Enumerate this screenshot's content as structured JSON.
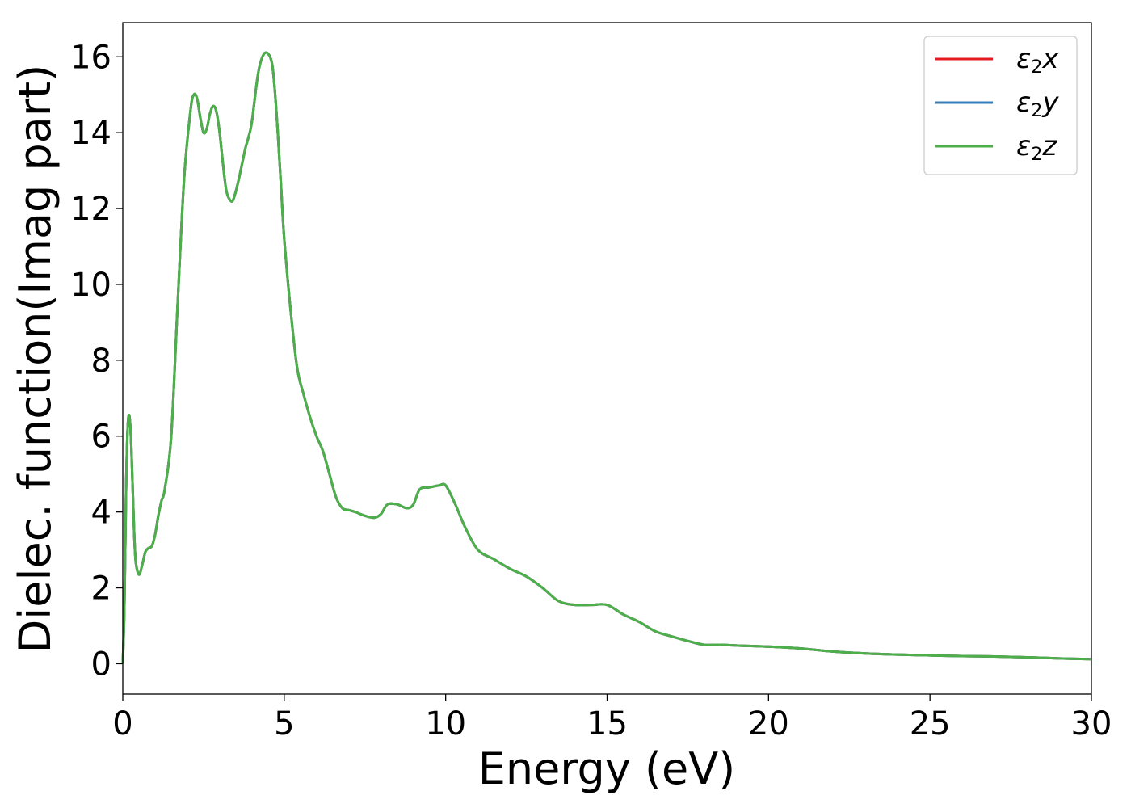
{
  "chart_data": {
    "type": "line",
    "xlabel": "Energy (eV)",
    "ylabel": "Dielec. function(Imag part)",
    "xlim": [
      0,
      30
    ],
    "ylim": [
      -0.8,
      16.9
    ],
    "xticks": [
      0,
      5,
      10,
      15,
      20,
      25,
      30
    ],
    "yticks": [
      0,
      2,
      4,
      6,
      8,
      10,
      12,
      14,
      16
    ],
    "grid": false,
    "legend_position": "top-right",
    "series": [
      {
        "name": "ε2x",
        "symbol": "ε",
        "subscript": "2",
        "suffix": "x",
        "color": "#e41a1c"
      },
      {
        "name": "ε2y",
        "symbol": "ε",
        "subscript": "2",
        "suffix": "y",
        "color": "#377eb8"
      },
      {
        "name": "ε2z",
        "symbol": "ε",
        "subscript": "2",
        "suffix": "z",
        "color": "#4daf4a"
      }
    ],
    "x": [
      0,
      0.05,
      0.1,
      0.15,
      0.2,
      0.25,
      0.3,
      0.35,
      0.4,
      0.5,
      0.6,
      0.7,
      0.8,
      0.9,
      1.0,
      1.1,
      1.2,
      1.3,
      1.5,
      1.7,
      1.9,
      2.1,
      2.2,
      2.3,
      2.4,
      2.5,
      2.6,
      2.7,
      2.8,
      2.9,
      3.0,
      3.1,
      3.2,
      3.3,
      3.4,
      3.5,
      3.6,
      3.7,
      3.8,
      3.9,
      4.0,
      4.2,
      4.4,
      4.6,
      4.7,
      4.8,
      4.9,
      5.0,
      5.2,
      5.4,
      5.6,
      5.8,
      6.0,
      6.2,
      6.4,
      6.6,
      6.8,
      7.0,
      7.2,
      7.5,
      7.8,
      8.0,
      8.2,
      8.5,
      8.8,
      9.0,
      9.2,
      9.5,
      9.8,
      10.0,
      10.3,
      10.6,
      11.0,
      11.5,
      12.0,
      12.5,
      13.0,
      13.5,
      14.0,
      14.5,
      15.0,
      15.5,
      16.0,
      16.5,
      17.0,
      17.5,
      18.0,
      18.5,
      19.0,
      20.0,
      21.0,
      22.0,
      23.0,
      24.0,
      25.0,
      26.0,
      27.0,
      28.0,
      29.0,
      30.0
    ],
    "values": [
      0.0,
      1.5,
      4.5,
      6.2,
      6.55,
      6.0,
      4.8,
      3.5,
      2.7,
      2.35,
      2.6,
      2.95,
      3.05,
      3.1,
      3.4,
      3.9,
      4.3,
      4.6,
      6.0,
      9.5,
      12.8,
      14.6,
      15.0,
      14.9,
      14.4,
      14.0,
      14.1,
      14.5,
      14.7,
      14.55,
      14.0,
      13.2,
      12.5,
      12.25,
      12.2,
      12.45,
      12.8,
      13.2,
      13.6,
      13.9,
      14.3,
      15.6,
      16.1,
      15.9,
      15.2,
      14.0,
      12.6,
      11.2,
      9.3,
      7.8,
      7.1,
      6.5,
      6.0,
      5.6,
      5.0,
      4.4,
      4.1,
      4.05,
      4.0,
      3.9,
      3.85,
      3.95,
      4.2,
      4.2,
      4.1,
      4.2,
      4.6,
      4.65,
      4.7,
      4.7,
      4.2,
      3.6,
      3.0,
      2.75,
      2.5,
      2.3,
      2.0,
      1.65,
      1.55,
      1.55,
      1.55,
      1.3,
      1.1,
      0.85,
      0.72,
      0.6,
      0.5,
      0.5,
      0.48,
      0.45,
      0.4,
      0.32,
      0.27,
      0.24,
      0.22,
      0.2,
      0.19,
      0.17,
      0.14,
      0.12
    ]
  }
}
